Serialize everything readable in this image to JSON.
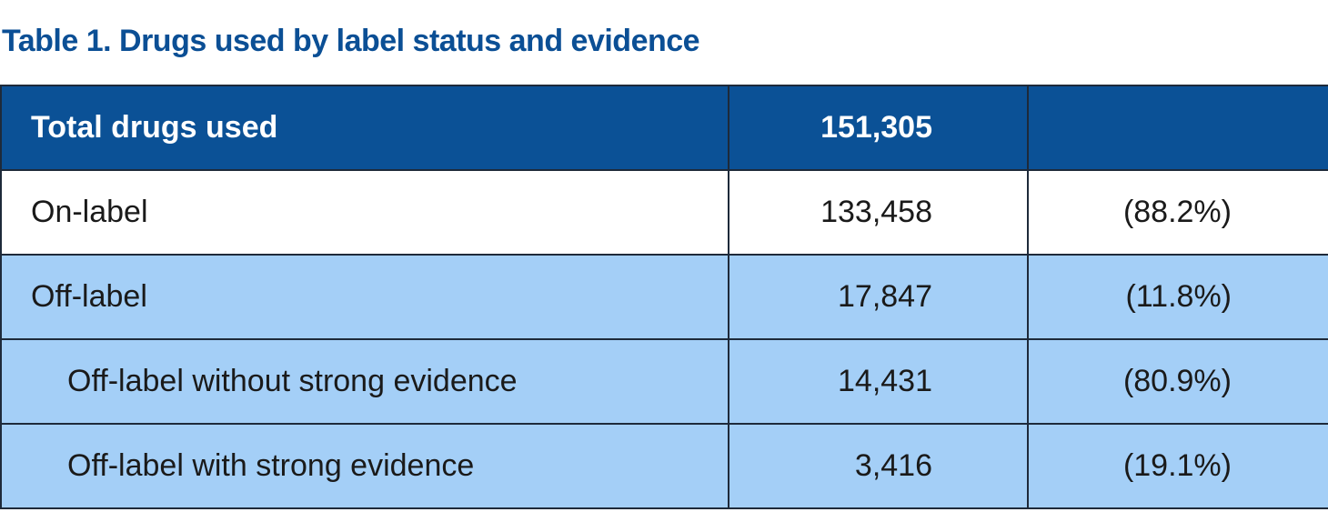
{
  "title": "Table 1. Drugs used by label status and evidence",
  "table": {
    "header": {
      "label": "Total drugs used",
      "count": "151,305",
      "percent": ""
    },
    "rows": [
      {
        "label": "On-label",
        "count": "133,458",
        "percent": "(88.2%)"
      },
      {
        "label": "Off-label",
        "count": "17,847",
        "percent": "(11.8%)"
      },
      {
        "label": "Off-label without strong evidence",
        "count": "14,431",
        "percent": "(80.9%)"
      },
      {
        "label": "Off-label with strong evidence",
        "count": "3,416",
        "percent": "(19.1%)"
      }
    ]
  },
  "colors": {
    "header_bg": "#0b5196",
    "highlight_row_bg": "#a4cff7",
    "title_text": "#0b4f95"
  }
}
